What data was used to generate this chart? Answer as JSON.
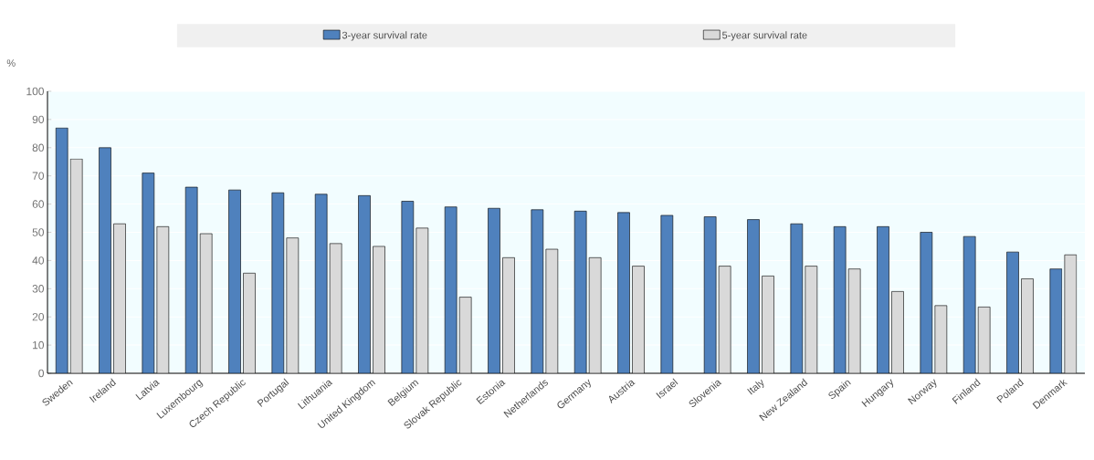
{
  "chart_data": {
    "type": "bar",
    "ylabel": "%",
    "categories": [
      "Sweden",
      "Ireland",
      "Latvia",
      "Luxembourg",
      "Czech Republic",
      "Portugal",
      "Lithuania",
      "United Kingdom",
      "Belgium",
      "Slovak Republic",
      "Estonia",
      "Netherlands",
      "Germany",
      "Austria",
      "Israel",
      "Slovenia",
      "Italy",
      "New Zealand",
      "Spain",
      "Hungary",
      "Norway",
      "Finland",
      "Poland",
      "Denmark"
    ],
    "series": [
      {
        "name": "3-year survival rate",
        "color": "#4f81bd",
        "values": [
          87,
          80,
          71,
          66,
          65,
          64,
          63.5,
          63,
          61,
          59,
          58.5,
          58,
          57.5,
          57,
          56,
          55.5,
          54.5,
          53,
          52,
          52,
          50,
          48.5,
          43,
          37
        ]
      },
      {
        "name": "5-year survival rate",
        "color": "#d9d9d9",
        "values": [
          76,
          53,
          52,
          49.5,
          35.5,
          48,
          46,
          45,
          51.5,
          27,
          41,
          44,
          41,
          38,
          null,
          38,
          34.5,
          38,
          37,
          29,
          24,
          23.5,
          33.5,
          42
        ]
      }
    ],
    "ylim": [
      0,
      100
    ],
    "yticks": [
      0,
      10,
      20,
      30,
      40,
      50,
      60,
      70,
      80,
      90,
      100
    ],
    "grid": "y",
    "legend": "top"
  }
}
